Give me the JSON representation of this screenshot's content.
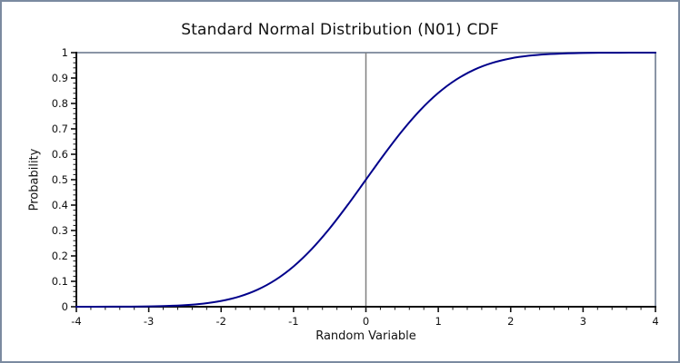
{
  "window": {
    "background": "#ffffff",
    "border_color": "#7b8aa0"
  },
  "chart_data": {
    "type": "line",
    "title": "Standard Normal Distribution (N01) CDF",
    "xlabel": "Random Variable",
    "ylabel": "Probability",
    "xlim": [
      -4,
      4
    ],
    "ylim": [
      0,
      1
    ],
    "grid": false,
    "legend": false,
    "x_ticks": {
      "major": [
        -4,
        -3,
        -2,
        -1,
        0,
        1,
        2,
        3,
        4
      ],
      "labels": [
        "-4",
        "-3",
        "-2",
        "-1",
        "0",
        "1",
        "2",
        "3",
        "4"
      ],
      "minor_step": 0.2
    },
    "y_ticks": {
      "major": [
        0,
        0.1,
        0.2,
        0.3,
        0.4,
        0.5,
        0.6,
        0.7,
        0.8,
        0.9,
        1
      ],
      "labels": [
        "0",
        "0.1",
        "0.2",
        "0.3",
        "0.4",
        "0.5",
        "0.6",
        "0.7",
        "0.8",
        "0.9",
        "1"
      ],
      "minor_step": 0.02
    },
    "reference_line_x": 0,
    "frame": {
      "top_y": 1,
      "right_x": 4
    },
    "series": [
      {
        "color": "#00008b",
        "stroke_width": 2,
        "x": [
          -4,
          -3.75,
          -3.5,
          -3.25,
          -3,
          -2.75,
          -2.5,
          -2.25,
          -2,
          -1.75,
          -1.5,
          -1.25,
          -1,
          -0.75,
          -0.5,
          -0.25,
          0,
          0.25,
          0.5,
          0.75,
          1,
          1.25,
          1.5,
          1.75,
          2,
          2.25,
          2.5,
          2.75,
          3,
          3.25,
          3.5,
          3.75,
          4
        ],
        "y": [
          3e-05,
          9e-05,
          0.00023,
          0.00058,
          0.00135,
          0.00298,
          0.00621,
          0.01222,
          0.02275,
          0.04006,
          0.06681,
          0.10565,
          0.15866,
          0.22663,
          0.30854,
          0.40129,
          0.5,
          0.59871,
          0.69146,
          0.77337,
          0.84134,
          0.89435,
          0.93319,
          0.95994,
          0.97725,
          0.98778,
          0.99379,
          0.99702,
          0.99865,
          0.99942,
          0.99977,
          0.99991,
          0.99997
        ]
      }
    ],
    "colors": {
      "axis": "#111111",
      "frame_line": "#8a95a6",
      "reference_line": "#808080",
      "curve": "#00008b",
      "text": "#111111"
    }
  }
}
